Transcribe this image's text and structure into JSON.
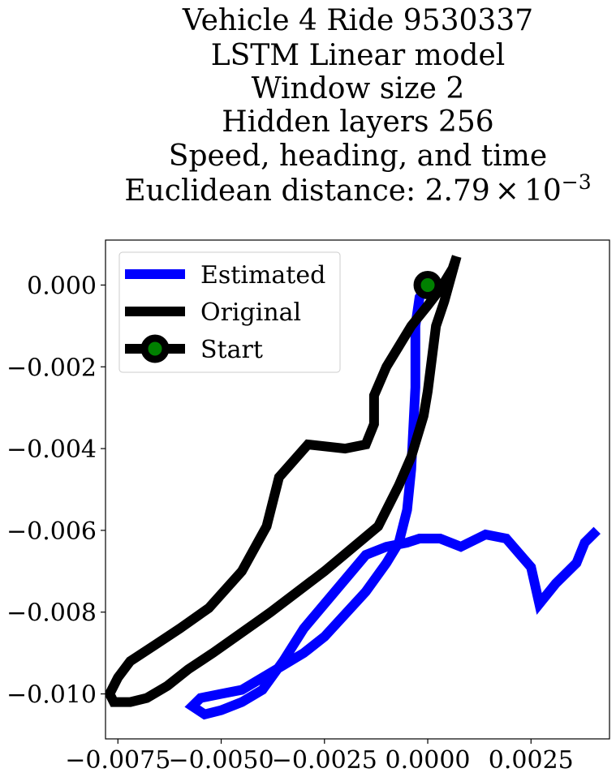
{
  "chart_data": {
    "type": "line",
    "title_lines": [
      "Vehicle 4 Ride 9530337",
      "LSTM Linear model",
      "Window size 2",
      "Hidden layers 256",
      "Speed, heading, and time"
    ],
    "distance_label": "Euclidean distance: ",
    "distance_mantissa": "2.79",
    "distance_times": "×",
    "distance_base": "10",
    "distance_exponent": "−3",
    "xlabel": "",
    "ylabel": "",
    "xlim": [
      -0.0078,
      0.0044
    ],
    "ylim": [
      -0.0111,
      0.0011
    ],
    "grid": false,
    "legend_position": "top-left",
    "x_ticks": [
      {
        "value": -0.0075,
        "label": "−0.0075"
      },
      {
        "value": -0.005,
        "label": "−0.0050"
      },
      {
        "value": -0.0025,
        "label": "−0.0025"
      },
      {
        "value": 0.0,
        "label": "0.0000"
      },
      {
        "value": 0.0025,
        "label": "0.0025"
      }
    ],
    "y_ticks": [
      {
        "value": 0.0,
        "label": "0.000"
      },
      {
        "value": -0.002,
        "label": "−0.002"
      },
      {
        "value": -0.004,
        "label": "−0.004"
      },
      {
        "value": -0.006,
        "label": "−0.006"
      },
      {
        "value": -0.008,
        "label": "−0.008"
      },
      {
        "value": -0.01,
        "label": "−0.010"
      }
    ],
    "series": [
      {
        "name": "Estimated",
        "color": "#0000ff",
        "points": [
          [
            0.0,
            0.0
          ],
          [
            -0.0002,
            -0.0003
          ],
          [
            -0.0003,
            -0.001
          ],
          [
            -0.0003,
            -0.0015
          ],
          [
            -0.0003,
            -0.0025
          ],
          [
            -0.0004,
            -0.0045
          ],
          [
            -0.0005,
            -0.0055
          ],
          [
            -0.0007,
            -0.0063
          ],
          [
            -0.001,
            -0.0068
          ],
          [
            -0.0015,
            -0.0075
          ],
          [
            -0.0025,
            -0.0086
          ],
          [
            -0.003,
            -0.009
          ],
          [
            -0.0035,
            -0.0093
          ],
          [
            -0.0045,
            -0.0099
          ],
          [
            -0.005,
            -0.01
          ],
          [
            -0.0055,
            -0.0101
          ],
          [
            -0.0057,
            -0.0103
          ],
          [
            -0.0054,
            -0.0105
          ],
          [
            -0.005,
            -0.0104
          ],
          [
            -0.0045,
            -0.0102
          ],
          [
            -0.004,
            -0.0099
          ],
          [
            -0.0035,
            -0.0092
          ],
          [
            -0.003,
            -0.0084
          ],
          [
            -0.0025,
            -0.0078
          ],
          [
            -0.0015,
            -0.0066
          ],
          [
            -0.001,
            -0.0064
          ],
          [
            -0.0005,
            -0.0063
          ],
          [
            -0.0002,
            -0.0062
          ],
          [
            0.0003,
            -0.0062
          ],
          [
            0.0008,
            -0.0064
          ],
          [
            0.0014,
            -0.0061
          ],
          [
            0.0019,
            -0.0062
          ],
          [
            0.0025,
            -0.0069
          ],
          [
            0.0027,
            -0.0078
          ],
          [
            0.0031,
            -0.0073
          ],
          [
            0.0036,
            -0.0068
          ],
          [
            0.0038,
            -0.0063
          ],
          [
            0.0041,
            -0.006
          ]
        ]
      },
      {
        "name": "Original",
        "color": "#000000",
        "points": [
          [
            0.0007,
            0.0007
          ],
          [
            0.0006,
            0.0004
          ],
          [
            0.0003,
            -0.0001
          ],
          [
            0.0,
            -0.0005
          ],
          [
            -0.0004,
            -0.001
          ],
          [
            -0.0007,
            -0.0015
          ],
          [
            -0.001,
            -0.002
          ],
          [
            -0.0013,
            -0.0027
          ],
          [
            -0.0013,
            -0.0034
          ],
          [
            -0.0015,
            -0.0039
          ],
          [
            -0.002,
            -0.004
          ],
          [
            -0.0029,
            -0.0039
          ],
          [
            -0.0036,
            -0.0047
          ],
          [
            -0.0039,
            -0.0059
          ],
          [
            -0.0045,
            -0.007
          ],
          [
            -0.0053,
            -0.0079
          ],
          [
            -0.006,
            -0.0084
          ],
          [
            -0.0066,
            -0.0088
          ],
          [
            -0.0072,
            -0.0092
          ],
          [
            -0.0075,
            -0.0096
          ],
          [
            -0.0077,
            -0.01
          ],
          [
            -0.0076,
            -0.0102
          ],
          [
            -0.0072,
            -0.0102
          ],
          [
            -0.0068,
            -0.0101
          ],
          [
            -0.0063,
            -0.0098
          ],
          [
            -0.0058,
            -0.0094
          ],
          [
            -0.0052,
            -0.009
          ],
          [
            -0.0045,
            -0.0085
          ],
          [
            -0.0038,
            -0.008
          ],
          [
            -0.0025,
            -0.007
          ],
          [
            -0.0012,
            -0.0059
          ],
          [
            -0.0007,
            -0.0049
          ],
          [
            -0.0004,
            -0.0042
          ],
          [
            -0.0001,
            -0.0032
          ],
          [
            0.0,
            -0.0026
          ],
          [
            0.0001,
            -0.0018
          ],
          [
            0.0002,
            -0.001
          ],
          [
            0.0004,
            -0.0004
          ],
          [
            0.0007,
            0.0007
          ]
        ]
      }
    ],
    "start_point": {
      "name": "Start",
      "x": 0.0,
      "y": 0.0,
      "fill": "#008000",
      "edge": "#000000"
    }
  }
}
